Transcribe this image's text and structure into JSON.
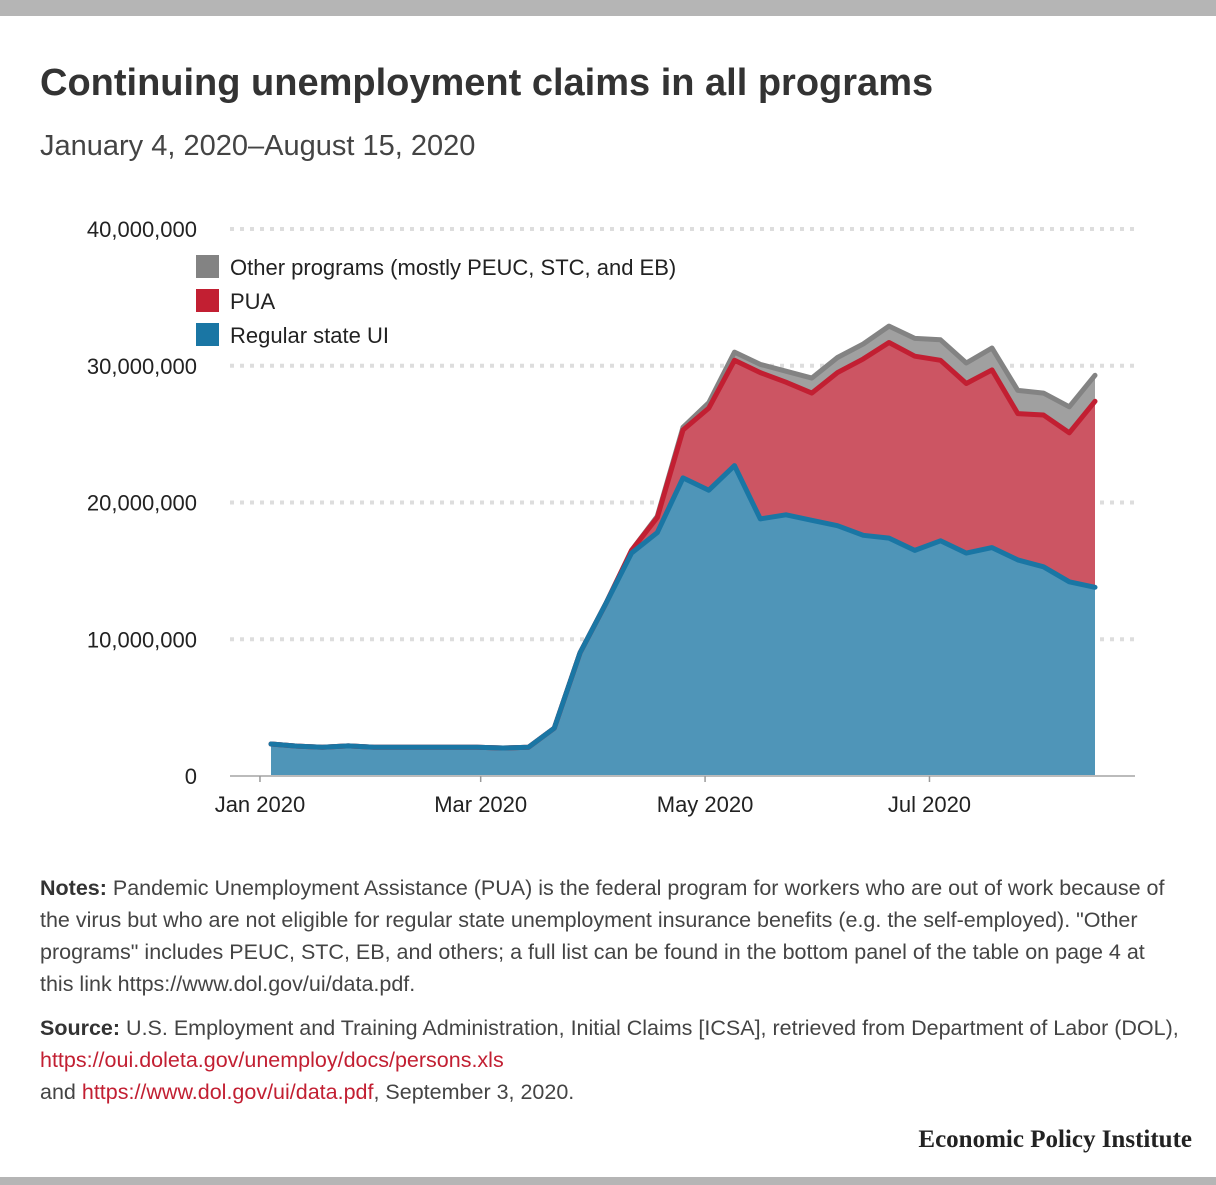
{
  "title": "Continuing unemployment claims in all programs",
  "subtitle": "January 4, 2020–August 15, 2020",
  "chart_data": {
    "type": "area",
    "stacked": true,
    "x": [
      "2020-01-04",
      "2020-01-11",
      "2020-01-18",
      "2020-01-25",
      "2020-02-01",
      "2020-02-08",
      "2020-02-15",
      "2020-02-22",
      "2020-02-29",
      "2020-03-07",
      "2020-03-14",
      "2020-03-21",
      "2020-03-28",
      "2020-04-04",
      "2020-04-11",
      "2020-04-18",
      "2020-04-25",
      "2020-05-02",
      "2020-05-09",
      "2020-05-16",
      "2020-05-23",
      "2020-05-30",
      "2020-06-06",
      "2020-06-13",
      "2020-06-20",
      "2020-06-27",
      "2020-07-04",
      "2020-07-11",
      "2020-07-18",
      "2020-07-25",
      "2020-08-01",
      "2020-08-08",
      "2020-08-15"
    ],
    "series": [
      {
        "name": "Regular state UI",
        "color": "#1a76a4",
        "fill": "#4f95b8",
        "values": [
          2340000,
          2190000,
          2100000,
          2200000,
          2100000,
          2100000,
          2100000,
          2100000,
          2100000,
          2050000,
          2100000,
          3500000,
          9000000,
          12600000,
          16300000,
          17800000,
          21800000,
          20900000,
          22700000,
          18800000,
          19100000,
          18700000,
          18300000,
          17600000,
          17400000,
          16500000,
          17200000,
          16300000,
          16700000,
          15800000,
          15300000,
          14200000,
          13800000
        ]
      },
      {
        "name": "PUA",
        "color": "#c21f32",
        "fill": "#cc5563",
        "values": [
          0,
          0,
          0,
          0,
          0,
          0,
          0,
          0,
          0,
          0,
          0,
          0,
          0,
          0,
          200000,
          1100000,
          3500000,
          6000000,
          7700000,
          10700000,
          9700000,
          9300000,
          11200000,
          12900000,
          14300000,
          14200000,
          13200000,
          12400000,
          13000000,
          10700000,
          11100000,
          10900000,
          13600000
        ]
      },
      {
        "name": "Other programs (mostly PEUC, STC, and EB)",
        "color": "#838383",
        "fill": "#a0a0a0",
        "values": [
          0,
          0,
          0,
          0,
          0,
          0,
          0,
          0,
          0,
          0,
          0,
          0,
          0,
          0,
          0,
          100000,
          200000,
          400000,
          600000,
          600000,
          800000,
          1100000,
          1100000,
          1100000,
          1200000,
          1300000,
          1500000,
          1500000,
          1600000,
          1700000,
          1600000,
          1900000,
          1900000
        ]
      }
    ],
    "ylim": [
      0,
      40000000
    ],
    "yticks": [
      "0",
      "10,000,000",
      "20,000,000",
      "30,000,000",
      "40,000,000"
    ],
    "xticks": [
      {
        "date": "2020-01-01",
        "label": "Jan 2020"
      },
      {
        "date": "2020-03-01",
        "label": "Mar 2020"
      },
      {
        "date": "2020-05-01",
        "label": "May 2020"
      },
      {
        "date": "2020-07-01",
        "label": "Jul 2020"
      }
    ],
    "grid": true,
    "legend_position": "top-left",
    "legend": [
      "Other programs (mostly PEUC, STC, and EB)",
      "PUA",
      "Regular state UI"
    ]
  },
  "notes": {
    "label": "Notes:",
    "text": " Pandemic Unemployment Assistance (PUA) is the federal program for workers who are out of work because of the virus but who are not eligible for regular state unemployment insurance benefits (e.g. the self-employed). \"Other programs\" includes PEUC, STC, EB, and others; a full list can be found in the bottom panel of the table on page 4 at this link https://www.dol.gov/ui/data.pdf."
  },
  "source": {
    "label": "Source:",
    "text1": " U.S. Employment and Training Administration, Initial Claims [ICSA], retrieved from Department of Labor (DOL), ",
    "link1": "https://oui.doleta.gov/unemploy/docs/persons.xls",
    "text2": "and ",
    "link2": "https://www.dol.gov/ui/data.pdf",
    "text3": ", September 3, 2020."
  },
  "brand": "Economic Policy Institute"
}
